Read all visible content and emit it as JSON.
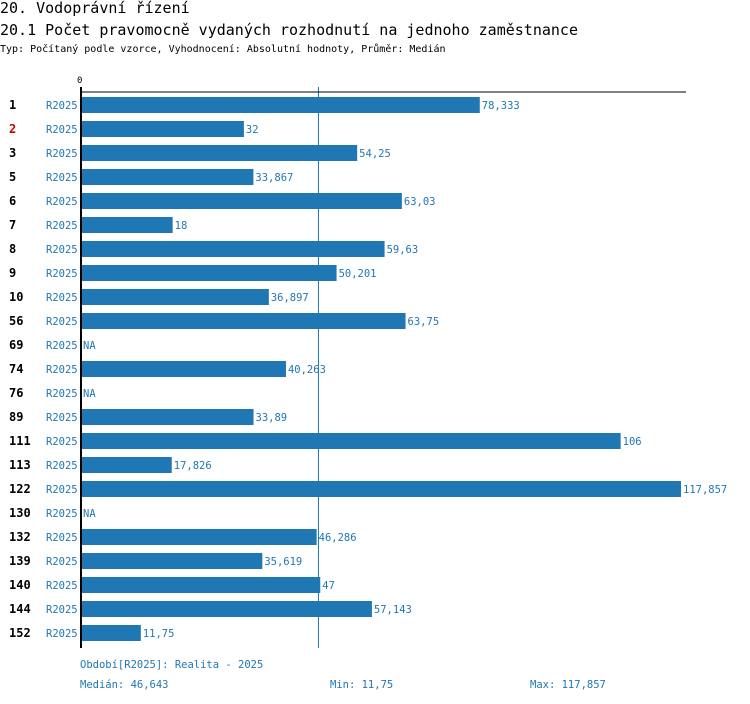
{
  "section_title": "20. Vodoprávní řízení",
  "chart_title": "20.1 Počet pravomocně vydaných rozhodnutí na jednoho zaměstnance",
  "subtitle": "Typ: Počítaný podle vzorce, Vyhodnocení: Absolutní hodnoty, Průměr: Medián",
  "colors": {
    "bar": "#1f77b4",
    "highlight_id": "#cc0000",
    "text": "#000000"
  },
  "chart_data": {
    "type": "bar",
    "orientation": "horizontal",
    "title": "20.1 Počet pravomocně vydaných rozhodnutí na jednoho zaměstnance",
    "axis_zero_label": "0",
    "xlim": [
      0,
      117.857
    ],
    "reference_line": {
      "name": "Medián",
      "value": 46.643
    },
    "highlight_row": "2",
    "rows": [
      {
        "id": "1",
        "period": "R2025",
        "value": 78.333,
        "label": "78,333"
      },
      {
        "id": "2",
        "period": "R2025",
        "value": 32,
        "label": "32"
      },
      {
        "id": "3",
        "period": "R2025",
        "value": 54.25,
        "label": "54,25"
      },
      {
        "id": "5",
        "period": "R2025",
        "value": 33.867,
        "label": "33,867"
      },
      {
        "id": "6",
        "period": "R2025",
        "value": 63.03,
        "label": "63,03"
      },
      {
        "id": "7",
        "period": "R2025",
        "value": 18,
        "label": "18"
      },
      {
        "id": "8",
        "period": "R2025",
        "value": 59.63,
        "label": "59,63"
      },
      {
        "id": "9",
        "period": "R2025",
        "value": 50.201,
        "label": "50,201"
      },
      {
        "id": "10",
        "period": "R2025",
        "value": 36.897,
        "label": "36,897"
      },
      {
        "id": "56",
        "period": "R2025",
        "value": 63.75,
        "label": "63,75"
      },
      {
        "id": "69",
        "period": "R2025",
        "value": null,
        "label": "NA"
      },
      {
        "id": "74",
        "period": "R2025",
        "value": 40.263,
        "label": "40,263"
      },
      {
        "id": "76",
        "period": "R2025",
        "value": null,
        "label": "NA"
      },
      {
        "id": "89",
        "period": "R2025",
        "value": 33.89,
        "label": "33,89"
      },
      {
        "id": "111",
        "period": "R2025",
        "value": 106,
        "label": "106"
      },
      {
        "id": "113",
        "period": "R2025",
        "value": 17.826,
        "label": "17,826"
      },
      {
        "id": "122",
        "period": "R2025",
        "value": 117.857,
        "label": "117,857"
      },
      {
        "id": "130",
        "period": "R2025",
        "value": null,
        "label": "NA"
      },
      {
        "id": "132",
        "period": "R2025",
        "value": 46.286,
        "label": "46,286"
      },
      {
        "id": "139",
        "period": "R2025",
        "value": 35.619,
        "label": "35,619"
      },
      {
        "id": "140",
        "period": "R2025",
        "value": 47,
        "label": "47"
      },
      {
        "id": "144",
        "period": "R2025",
        "value": 57.143,
        "label": "57,143"
      },
      {
        "id": "152",
        "period": "R2025",
        "value": 11.75,
        "label": "11,75"
      }
    ]
  },
  "footer": {
    "period_note": "Období[R2025]: Realita - 2025",
    "median": "Medián: 46,643",
    "min": "Min: 11,75",
    "max": "Max: 117,857"
  }
}
